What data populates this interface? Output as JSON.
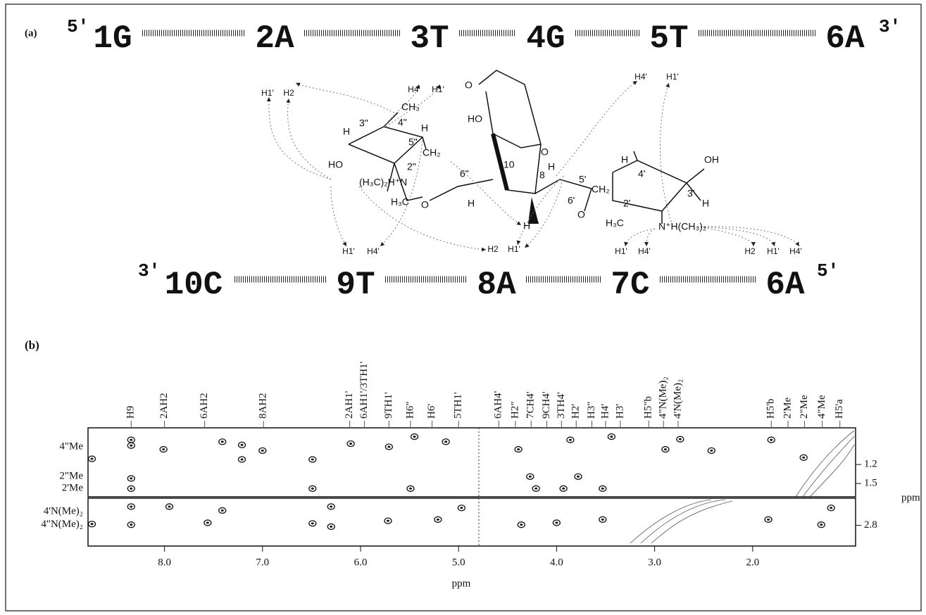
{
  "diagram": {
    "label": "(a)",
    "top_strand": {
      "five_prime": "5′",
      "three_prime": "3′",
      "bases": [
        "1G",
        "2A",
        "3T",
        "4G",
        "5T",
        "6A"
      ]
    },
    "bottom_strand": {
      "three_prime": "3′",
      "five_prime": "5′",
      "bases": [
        "10C",
        "9T",
        "8A",
        "7C",
        "6A"
      ]
    },
    "protons_top": [
      "H1'",
      "H2",
      "H4'",
      "H1'",
      "H4'",
      "H1'"
    ],
    "protons_bottom": [
      "H1'",
      "H4'",
      "H2",
      "H1'",
      "H1'",
      "H4'",
      "H2",
      "H1'",
      "H4'"
    ],
    "structure_labels": [
      "CH₃",
      "H",
      "3\"",
      "4\"",
      "H",
      "HO",
      "5\"",
      "CH₂",
      "(H₃C)₂H⁺N",
      "2\"",
      "6\"",
      "H₃C",
      "O",
      "H",
      "O",
      "HO",
      "O",
      "10",
      "8",
      "H",
      "5'",
      "CH₂",
      "6'",
      "H",
      "O",
      "H",
      "4'",
      "OH",
      "3'",
      "H",
      "2'",
      "H₃C",
      "N⁺H(CH₃)₂"
    ]
  },
  "chart_data": {
    "type": "scatter",
    "label": "(b)",
    "x_label": "ppm",
    "y_label": "ppm",
    "xlim": [
      8.78,
      0.95
    ],
    "xticks": [
      {
        "value": 8,
        "label": "8.0"
      },
      {
        "value": 7,
        "label": "7.0"
      },
      {
        "value": 6,
        "label": "6.0"
      },
      {
        "value": 5,
        "label": "5.0"
      },
      {
        "value": 4,
        "label": "4.0"
      },
      {
        "value": 3,
        "label": "3.0"
      },
      {
        "value": 2,
        "label": "2.0"
      }
    ],
    "panels": [
      {
        "ylim": [
          0.62,
          1.71
        ],
        "yticks": [
          1.2,
          1.5
        ]
      },
      {
        "ylim": [
          2.38,
          3.12
        ],
        "yticks": [
          2.8
        ]
      }
    ],
    "column_labels": {
      "labels": [
        "H9",
        "2AH2",
        "6AH2",
        "8AH2",
        "2AH1'",
        "6AH1'/3TH1'",
        "9TH1'",
        "H6\"",
        "H6'",
        "5TH1'",
        "6AH4'",
        "H2\"",
        "7CH4'",
        "9CH4'",
        "3TH4'",
        "H2'",
        "H3\"",
        "H4'",
        "H3'",
        "H5\"b",
        "4\"N(Me)₂",
        "4'N(Me)₂",
        "H5'b",
        "2'Me",
        "2\"Me",
        "4\"Me",
        "H5'a"
      ],
      "x": [
        8.34,
        8.0,
        7.59,
        6.99,
        6.11,
        5.96,
        5.71,
        5.49,
        5.27,
        5.0,
        4.59,
        4.42,
        4.26,
        4.1,
        3.95,
        3.8,
        3.64,
        3.5,
        3.35,
        3.06,
        2.91,
        2.76,
        1.81,
        1.64,
        1.47,
        1.29,
        1.11
      ]
    },
    "row_labels": {
      "labels": [
        "4\"Me",
        "2\"Me",
        "2'Me",
        "4'N(Me)₂",
        "4\"N(Me)₂"
      ],
      "y": [
        0.92,
        1.39,
        1.58,
        2.59,
        2.79
      ]
    },
    "peaks": {
      "x": [
        8.74,
        8.34,
        8.34,
        8.01,
        7.41,
        7.21,
        7.21,
        7.0,
        6.49,
        6.1,
        5.71,
        5.45,
        5.13,
        8.34,
        8.34,
        6.49,
        5.49,
        4.39,
        4.27,
        4.21,
        3.93,
        3.86,
        3.78,
        3.53,
        3.44,
        2.89,
        2.74,
        2.42,
        1.81,
        1.48,
        8.74,
        8.34,
        8.34,
        7.95,
        7.56,
        7.41,
        6.49,
        6.3,
        6.3,
        5.72,
        5.21,
        4.97,
        4.36,
        4.0,
        3.53,
        1.84,
        1.2,
        1.3
      ],
      "y": [
        1.11,
        0.81,
        0.9,
        0.96,
        0.84,
        0.89,
        1.12,
        0.98,
        1.12,
        0.87,
        0.92,
        0.76,
        0.84,
        1.42,
        1.58,
        1.58,
        1.58,
        0.96,
        1.39,
        1.58,
        1.58,
        0.81,
        1.39,
        1.58,
        0.76,
        0.96,
        0.8,
        0.98,
        0.81,
        1.09,
        2.78,
        2.51,
        2.79,
        2.51,
        2.76,
        2.57,
        2.77,
        2.51,
        2.82,
        2.73,
        2.71,
        2.53,
        2.79,
        2.76,
        2.71,
        2.71,
        2.53,
        2.79
      ]
    }
  }
}
